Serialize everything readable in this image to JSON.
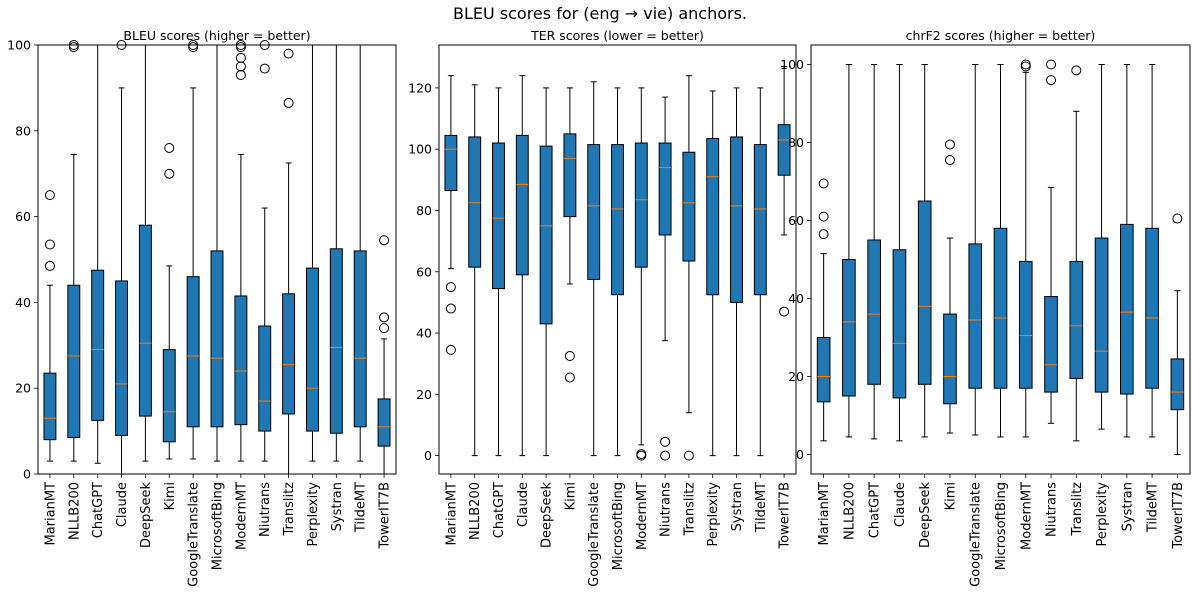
{
  "suptitle": "BLEU scores for (eng → vie) anchors.",
  "colors": {
    "box_fill": "#1f77b4",
    "median": "#ff7f0e",
    "line": "#000000"
  },
  "chart_data": [
    {
      "type": "box",
      "title": "BLEU scores (higher = better)",
      "ylim": [
        0,
        100
      ],
      "yticks": [
        0,
        20,
        40,
        60,
        80,
        100
      ],
      "categories": [
        "MarianMT",
        "NLLB200",
        "ChatGPT",
        "Claude",
        "DeepSeek",
        "Kimi",
        "GoogleTranslate",
        "MicrosoftBing",
        "ModernMT",
        "Niutrans",
        "Translitz",
        "Perplexity",
        "Systran",
        "TildeMT",
        "TowerIT7B"
      ],
      "boxes": [
        {
          "whislo": 3,
          "q1": 8,
          "med": 13,
          "q3": 23.5,
          "whishi": 44,
          "fliers": [
            48.5,
            53.5,
            65
          ]
        },
        {
          "whislo": 3,
          "q1": 8.5,
          "med": 27.5,
          "q3": 44,
          "whishi": 74.5,
          "fliers": [
            99.5,
            100
          ]
        },
        {
          "whislo": 2.5,
          "q1": 12.5,
          "med": 29,
          "q3": 47.5,
          "whishi": 100,
          "fliers": []
        },
        {
          "whislo": 0,
          "q1": 9,
          "med": 21,
          "q3": 45,
          "whishi": 90,
          "fliers": [
            100
          ]
        },
        {
          "whislo": 3,
          "q1": 13.5,
          "med": 30.5,
          "q3": 58,
          "whishi": 100,
          "fliers": []
        },
        {
          "whislo": 3.5,
          "q1": 7.5,
          "med": 14.5,
          "q3": 29,
          "whishi": 48.5,
          "fliers": [
            70,
            76
          ]
        },
        {
          "whislo": 3.5,
          "q1": 11,
          "med": 27.5,
          "q3": 46,
          "whishi": 90,
          "fliers": [
            99.5,
            100
          ]
        },
        {
          "whislo": 3,
          "q1": 11,
          "med": 27,
          "q3": 52,
          "whishi": 100,
          "fliers": []
        },
        {
          "whislo": 3,
          "q1": 11.5,
          "med": 24,
          "q3": 41.5,
          "whishi": 74.5,
          "fliers": [
            93,
            95,
            97,
            99.5,
            100
          ]
        },
        {
          "whislo": 3,
          "q1": 10,
          "med": 17,
          "q3": 34.5,
          "whishi": 62,
          "fliers": [
            94.5,
            100
          ]
        },
        {
          "whislo": 0,
          "q1": 14,
          "med": 25.5,
          "q3": 42,
          "whishi": 72.5,
          "fliers": [
            86.5,
            98
          ]
        },
        {
          "whislo": 3,
          "q1": 10,
          "med": 20,
          "q3": 48,
          "whishi": 100,
          "fliers": []
        },
        {
          "whislo": 3,
          "q1": 9.5,
          "med": 29.5,
          "q3": 52.5,
          "whishi": 100,
          "fliers": []
        },
        {
          "whislo": 3,
          "q1": 11,
          "med": 27,
          "q3": 52,
          "whishi": 100,
          "fliers": []
        },
        {
          "whislo": 0,
          "q1": 6.5,
          "med": 11,
          "q3": 17.5,
          "whishi": 31.5,
          "fliers": [
            34,
            36.5,
            54.5
          ]
        }
      ]
    },
    {
      "type": "box",
      "title": "TER scores (lower = better)",
      "ylim": [
        -6,
        134
      ],
      "yticks": [
        0,
        20,
        40,
        60,
        80,
        100,
        120
      ],
      "categories": [
        "MarianMT",
        "NLLB200",
        "ChatGPT",
        "Claude",
        "DeepSeek",
        "Kimi",
        "GoogleTranslate",
        "MicrosoftBing",
        "ModernMT",
        "Niutrans",
        "Translitz",
        "Perplexity",
        "Systran",
        "TildeMT",
        "TowerIT7B"
      ],
      "boxes": [
        {
          "whislo": 61,
          "q1": 86.5,
          "med": 100,
          "q3": 104.5,
          "whishi": 124,
          "fliers": [
            34.5,
            48,
            55
          ]
        },
        {
          "whislo": 0,
          "q1": 61.5,
          "med": 82.5,
          "q3": 104,
          "whishi": 121,
          "fliers": []
        },
        {
          "whislo": 0,
          "q1": 54.5,
          "med": 77.5,
          "q3": 102,
          "whishi": 120,
          "fliers": []
        },
        {
          "whislo": 0,
          "q1": 59,
          "med": 88.5,
          "q3": 104.5,
          "whishi": 124,
          "fliers": []
        },
        {
          "whislo": 0,
          "q1": 43,
          "med": 75,
          "q3": 101,
          "whishi": 120,
          "fliers": []
        },
        {
          "whislo": 56,
          "q1": 78,
          "med": 97,
          "q3": 105,
          "whishi": 120,
          "fliers": [
            25.5,
            32.5
          ]
        },
        {
          "whislo": 0,
          "q1": 57.5,
          "med": 81.5,
          "q3": 101.5,
          "whishi": 122,
          "fliers": []
        },
        {
          "whislo": 0,
          "q1": 52.5,
          "med": 80.5,
          "q3": 101.5,
          "whishi": 120,
          "fliers": []
        },
        {
          "whislo": 3.5,
          "q1": 61.5,
          "med": 83.5,
          "q3": 102,
          "whishi": 120,
          "fliers": [
            0,
            0.5
          ]
        },
        {
          "whislo": 37.5,
          "q1": 72,
          "med": 94,
          "q3": 102,
          "whishi": 117,
          "fliers": [
            0,
            4.5
          ]
        },
        {
          "whislo": 14,
          "q1": 63.5,
          "med": 82.5,
          "q3": 99,
          "whishi": 124,
          "fliers": [
            0
          ]
        },
        {
          "whislo": 0,
          "q1": 52.5,
          "med": 91,
          "q3": 103.5,
          "whishi": 119,
          "fliers": []
        },
        {
          "whislo": 0,
          "q1": 50,
          "med": 81.5,
          "q3": 104,
          "whishi": 120,
          "fliers": []
        },
        {
          "whislo": 0,
          "q1": 52.5,
          "med": 80.5,
          "q3": 101.5,
          "whishi": 120,
          "fliers": []
        },
        {
          "whislo": 72,
          "q1": 91.5,
          "med": 103,
          "q3": 108,
          "whishi": 127,
          "fliers": [
            47
          ]
        }
      ]
    },
    {
      "type": "box",
      "title": "chrF2 scores (higher = better)",
      "ylim": [
        -5,
        105
      ],
      "yticks": [
        0,
        20,
        40,
        60,
        80,
        100
      ],
      "categories": [
        "MarianMT",
        "NLLB200",
        "ChatGPT",
        "Claude",
        "DeepSeek",
        "Kimi",
        "GoogleTranslate",
        "MicrosoftBing",
        "ModernMT",
        "Niutrans",
        "Translitz",
        "Perplexity",
        "Systran",
        "TildeMT",
        "TowerIT7B"
      ],
      "boxes": [
        {
          "whislo": 3.5,
          "q1": 13.5,
          "med": 20,
          "q3": 30,
          "whishi": 51.5,
          "fliers": [
            56.5,
            61,
            69.5
          ]
        },
        {
          "whislo": 4.5,
          "q1": 15,
          "med": 34,
          "q3": 50,
          "whishi": 100,
          "fliers": []
        },
        {
          "whislo": 4,
          "q1": 18,
          "med": 36,
          "q3": 55,
          "whishi": 100,
          "fliers": []
        },
        {
          "whislo": 3.5,
          "q1": 14.5,
          "med": 28.5,
          "q3": 52.5,
          "whishi": 100,
          "fliers": []
        },
        {
          "whislo": 4.5,
          "q1": 18,
          "med": 38,
          "q3": 65,
          "whishi": 100,
          "fliers": []
        },
        {
          "whislo": 5.5,
          "q1": 13,
          "med": 20,
          "q3": 36,
          "whishi": 55.5,
          "fliers": [
            75.5,
            79.5
          ]
        },
        {
          "whislo": 5,
          "q1": 17,
          "med": 34.5,
          "q3": 54,
          "whishi": 100,
          "fliers": []
        },
        {
          "whislo": 4.5,
          "q1": 17,
          "med": 35,
          "q3": 58,
          "whishi": 100,
          "fliers": []
        },
        {
          "whislo": 4.5,
          "q1": 17,
          "med": 30.5,
          "q3": 49.5,
          "whishi": 98,
          "fliers": [
            99.5,
            100
          ]
        },
        {
          "whislo": 8,
          "q1": 16,
          "med": 23,
          "q3": 40.5,
          "whishi": 68.5,
          "fliers": [
            96,
            100
          ]
        },
        {
          "whislo": 3.5,
          "q1": 19.5,
          "med": 33,
          "q3": 49.5,
          "whishi": 88,
          "fliers": [
            98.5
          ]
        },
        {
          "whislo": 6.5,
          "q1": 16,
          "med": 26.5,
          "q3": 55.5,
          "whishi": 100,
          "fliers": []
        },
        {
          "whislo": 4.5,
          "q1": 15.5,
          "med": 36.5,
          "q3": 59,
          "whishi": 100,
          "fliers": []
        },
        {
          "whislo": 4.5,
          "q1": 17,
          "med": 35,
          "q3": 58,
          "whishi": 100,
          "fliers": []
        },
        {
          "whislo": 0,
          "q1": 11.5,
          "med": 16,
          "q3": 24.5,
          "whishi": 42,
          "fliers": [
            60.5
          ]
        }
      ]
    }
  ]
}
